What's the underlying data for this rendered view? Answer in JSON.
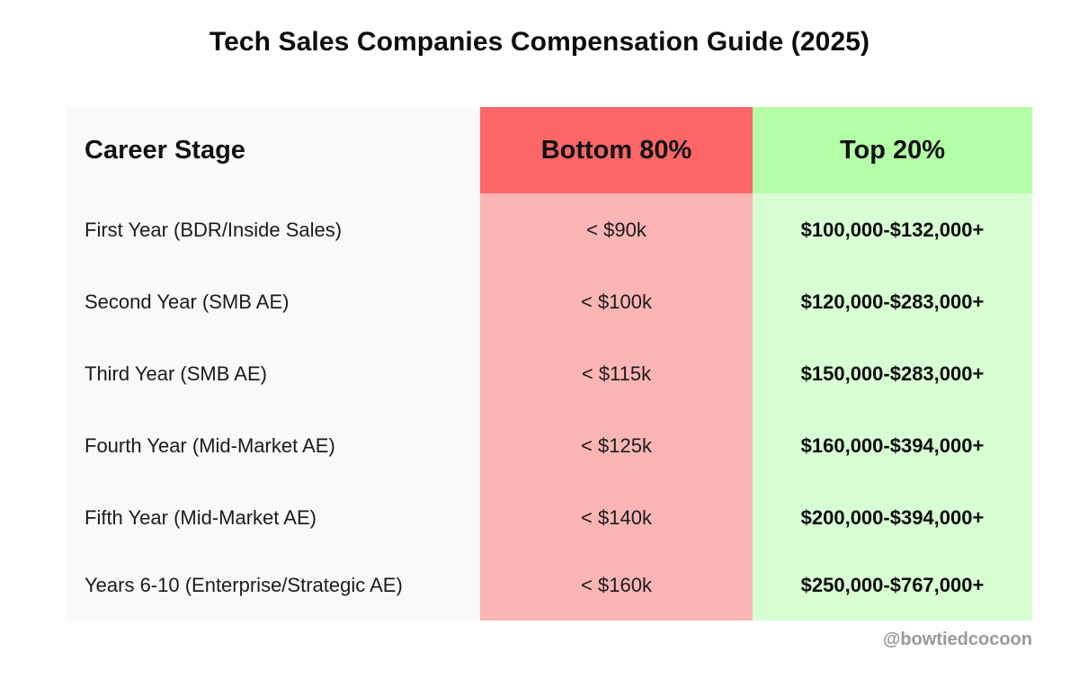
{
  "title": "Tech Sales Companies Compensation Guide (2025)",
  "table": {
    "headers": {
      "stage": "Career Stage",
      "bottom": "Bottom 80%",
      "top": "Top 20%"
    },
    "rows": [
      {
        "stage": "First Year (BDR/Inside Sales)",
        "bottom": "< $90k",
        "top": "$100,000-$132,000+"
      },
      {
        "stage": "Second Year (SMB AE)",
        "bottom": "< $100k",
        "top": "$120,000-$283,000+"
      },
      {
        "stage": "Third Year (SMB AE)",
        "bottom": "< $115k",
        "top": "$150,000-$283,000+"
      },
      {
        "stage": "Fourth Year (Mid-Market AE)",
        "bottom": "< $125k",
        "top": "$160,000-$394,000+"
      },
      {
        "stage": "Fifth Year (Mid-Market AE)",
        "bottom": "< $140k",
        "top": "$200,000-$394,000+"
      },
      {
        "stage": "Years 6-10 (Enterprise/Strategic AE)",
        "bottom": "< $160k",
        "top": "$250,000-$767,000+"
      }
    ]
  },
  "watermark": "@bowtiedcocoon",
  "colors": {
    "bottom_header": "#fe6767",
    "bottom_body": "#fbb5b4",
    "top_header": "#b4fea7",
    "top_body": "#d8ffd3",
    "stage_body": "#f9f9f9"
  }
}
